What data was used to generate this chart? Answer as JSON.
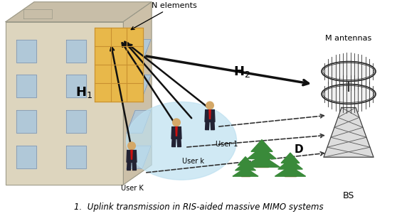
{
  "fig_width": 5.58,
  "fig_height": 3.04,
  "dpi": 100,
  "bg_color": "#ffffff",
  "caption": "1.  Uplink transmission in RIS-aided massive MIMO systems",
  "caption_fontsize": 8.5,
  "N_label": "N elements",
  "H1_label": "H$_1$",
  "H2_label": "H$_2$",
  "D_label": "D",
  "M_label": "M antennas",
  "BS_label": "BS",
  "user1_label": "User 1",
  "userk_label": "User k",
  "userK_label": "User K",
  "building_front_color": "#ddd5be",
  "building_top_color": "#c8bea8",
  "building_side_color": "#ccc0a8",
  "building_outline_color": "#999888",
  "window_color": "#b0c8d8",
  "ris_color": "#e8b84a",
  "ris_grid_color": "#c89030",
  "user_ellipse_color": "#bde0f0",
  "tree_color_1": "#3a8a3a",
  "tree_color_2": "#2d7030",
  "tree_trunk_color": "#8B5520",
  "arrow_color": "#111111",
  "dashed_color": "#333333"
}
